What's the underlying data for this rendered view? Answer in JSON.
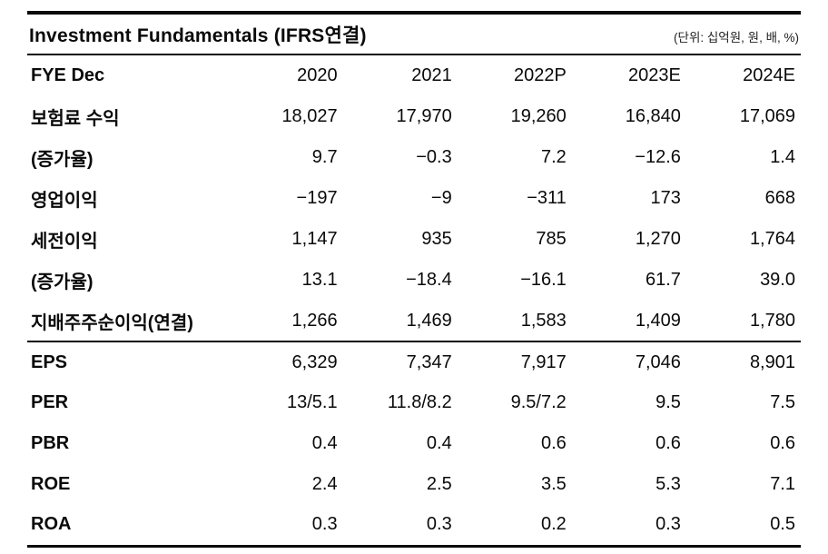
{
  "header": {
    "title": "Investment Fundamentals (IFRS연결)",
    "unit_note": "(단위: 십억원, 원, 배, %)"
  },
  "table": {
    "columns": [
      "FYE Dec",
      "2020",
      "2021",
      "2022P",
      "2023E",
      "2024E"
    ],
    "sections": [
      {
        "rows": [
          {
            "label": "보험료 수익",
            "values": [
              "18,027",
              "17,970",
              "19,260",
              "16,840",
              "17,069"
            ]
          },
          {
            "label": "(증가율)",
            "values": [
              "9.7",
              "−0.3",
              "7.2",
              "−12.6",
              "1.4"
            ]
          },
          {
            "label": "영업이익",
            "values": [
              "−197",
              "−9",
              "−311",
              "173",
              "668"
            ]
          },
          {
            "label": "세전이익",
            "values": [
              "1,147",
              "935",
              "785",
              "1,270",
              "1,764"
            ]
          },
          {
            "label": "(증가율)",
            "values": [
              "13.1",
              "−18.4",
              "−16.1",
              "61.7",
              "39.0"
            ]
          },
          {
            "label": "지배주주순이익(연결)",
            "values": [
              "1,266",
              "1,469",
              "1,583",
              "1,409",
              "1,780"
            ]
          }
        ]
      },
      {
        "rows": [
          {
            "label": "EPS",
            "values": [
              "6,329",
              "7,347",
              "7,917",
              "7,046",
              "8,901"
            ]
          },
          {
            "label": "PER",
            "values": [
              "13/5.1",
              "11.8/8.2",
              "9.5/7.2",
              "9.5",
              "7.5"
            ]
          },
          {
            "label": "PBR",
            "values": [
              "0.4",
              "0.4",
              "0.6",
              "0.6",
              "0.6"
            ]
          },
          {
            "label": "ROE",
            "values": [
              "2.4",
              "2.5",
              "3.5",
              "5.3",
              "7.1"
            ]
          },
          {
            "label": "ROA",
            "values": [
              "0.3",
              "0.3",
              "0.2",
              "0.3",
              "0.5"
            ]
          }
        ]
      }
    ]
  }
}
